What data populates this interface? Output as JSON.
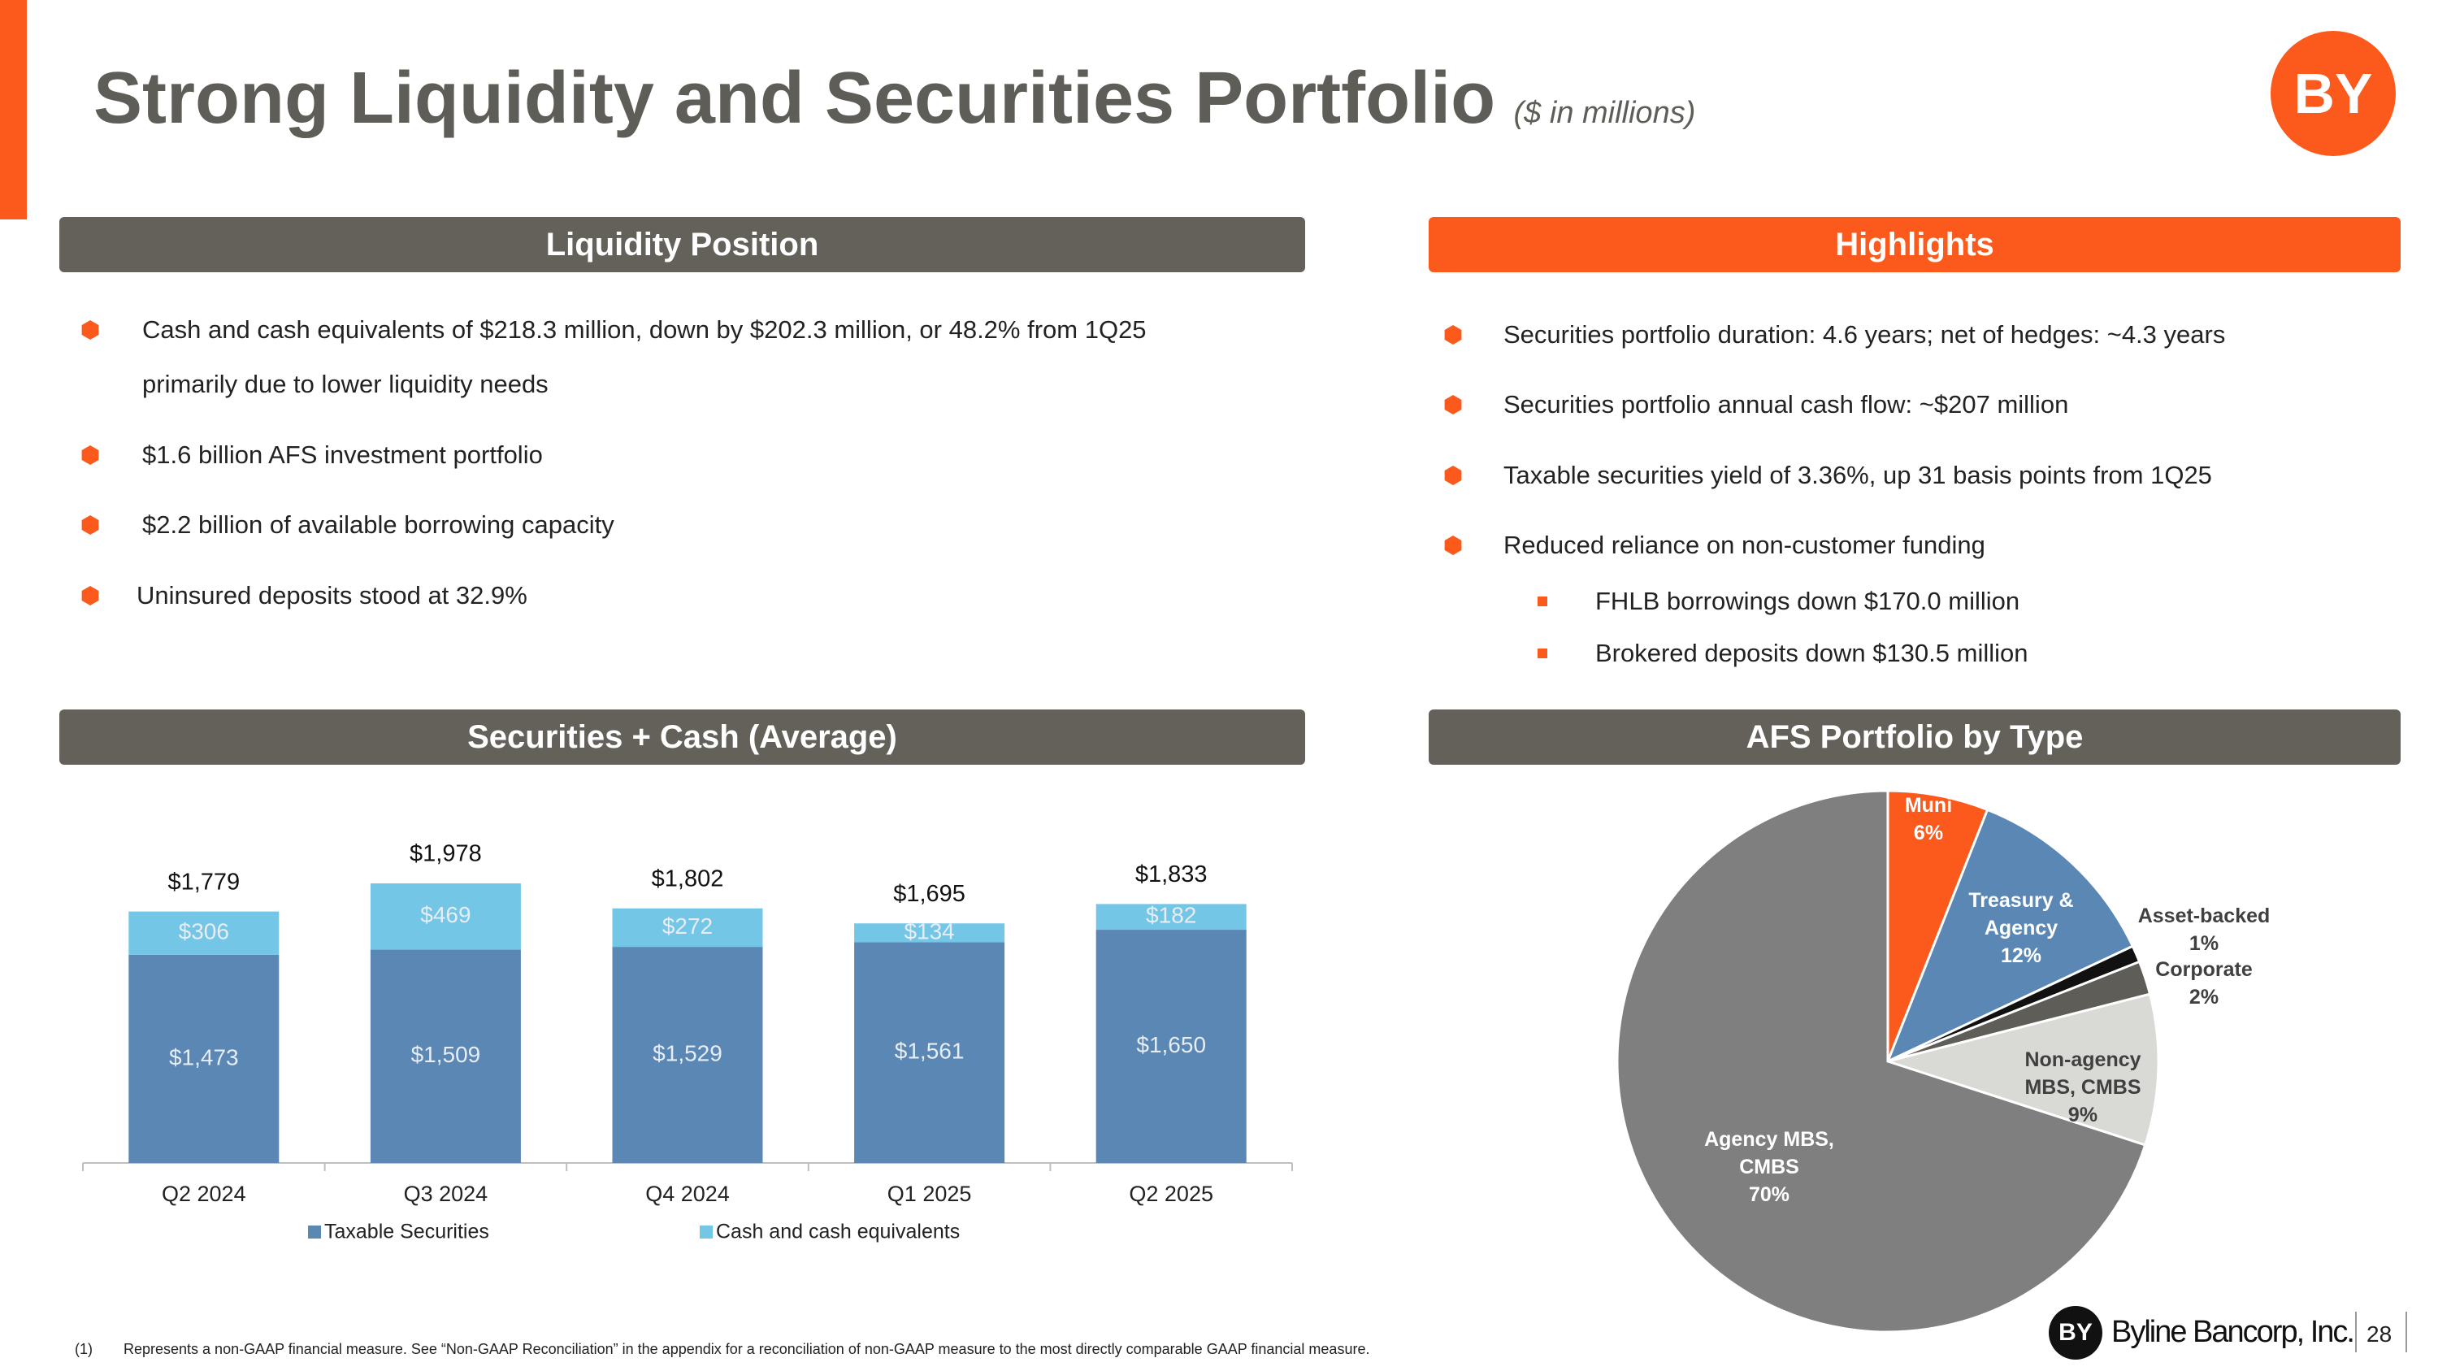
{
  "title": "Strong Liquidity and Securities Portfolio",
  "subtitle": "($ in millions)",
  "logo": "BY",
  "liquidity": {
    "heading": "Liquidity Position",
    "bullets": [
      "Cash and cash equivalents of $218.3 million, down by $202.3 million, or 48.2% from 1Q25 primarily due to lower liquidity needs",
      "$1.6 billion AFS investment portfolio",
      "$2.2 billion of available borrowing capacity",
      "Uninsured deposits stood at 32.9%"
    ]
  },
  "highlights": {
    "heading": "Highlights",
    "bullets": [
      "Securities portfolio duration: 4.6 years; net of hedges: ~4.3 years",
      "Securities portfolio annual cash flow: ~$207 million",
      "Taxable securities yield of 3.36%, up 31 basis points from 1Q25",
      "Reduced reliance on non-customer funding"
    ],
    "sub_bullets": [
      "FHLB borrowings down $170.0 million",
      "Brokered deposits down $130.5 million"
    ]
  },
  "chart_data": [
    {
      "type": "bar",
      "stacked": true,
      "title": "Securities + Cash (Average)",
      "categories": [
        "Q2 2024",
        "Q3 2024",
        "Q4 2024",
        "Q1 2025",
        "Q2 2025"
      ],
      "series": [
        {
          "name": "Taxable Securities",
          "color": "#5b87b5",
          "values": [
            1473,
            1509,
            1529,
            1561,
            1650
          ],
          "value_labels": [
            "$1,473",
            "$1,509",
            "$1,529",
            "$1,561",
            "$1,650"
          ]
        },
        {
          "name": "Cash and cash equivalents",
          "color": "#74c6e6",
          "values": [
            306,
            469,
            272,
            134,
            182
          ],
          "value_labels": [
            "$306",
            "$469",
            "$272",
            "$134",
            "$182"
          ]
        }
      ],
      "totals": [
        1779,
        1978,
        1802,
        1695,
        1833
      ],
      "total_labels": [
        "$1,779",
        "$1,978",
        "$1,802",
        "$1,695",
        "$1,833"
      ],
      "legend": "bottom"
    },
    {
      "type": "pie",
      "title": "AFS Portfolio by Type",
      "categories": [
        "Muni",
        "Treasury & Agency",
        "Asset-backed",
        "Corporate",
        "Non-agency MBS, CMBS",
        "Agency MBS, CMBS"
      ],
      "values": [
        6,
        12,
        1,
        2,
        9,
        70
      ],
      "value_labels": [
        "6%",
        "12%",
        "1%",
        "2%",
        "9%",
        "70%"
      ],
      "colors": [
        "#fc5a1c",
        "#5b87b5",
        "#111111",
        "#5f5d57",
        "#d9d9d5",
        "#7f7f7f"
      ]
    }
  ],
  "footnote": {
    "marker": "(1)",
    "text": "Represents a non-GAAP financial measure.  See “Non-GAAP Reconciliation” in the appendix for a reconciliation of non-GAAP measure to the most directly comparable GAAP financial measure."
  },
  "footer": {
    "brand": "Byline Bancorp, Inc.",
    "page": 28
  }
}
